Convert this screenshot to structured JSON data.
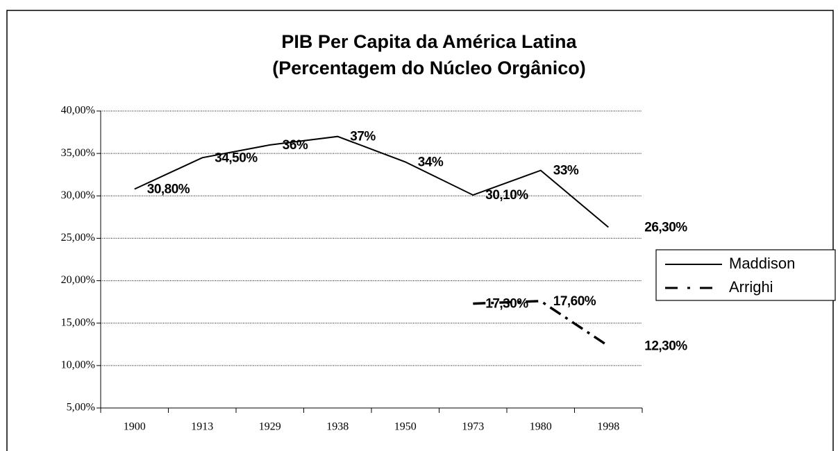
{
  "chart_data": {
    "type": "line",
    "title": [
      "PIB Per Capita da América Latina",
      "(Percentagem do Núcleo Orgânico)"
    ],
    "categories": [
      "1900",
      "1913",
      "1929",
      "1938",
      "1950",
      "1973",
      "1980",
      "1998"
    ],
    "series": [
      {
        "name": "Maddison",
        "color": "#000000",
        "dash": false,
        "values": [
          30.8,
          34.5,
          36,
          37,
          34,
          30.1,
          33,
          26.3
        ],
        "value_labels": [
          "30,80%",
          "34,50%",
          "36%",
          "37%",
          "34%",
          "30,10%",
          "33%",
          "26,30%"
        ]
      },
      {
        "name": "Arrighi",
        "color": "#000000",
        "dash": true,
        "values": [
          null,
          null,
          null,
          null,
          null,
          17.3,
          17.6,
          12.3
        ],
        "value_labels": [
          null,
          null,
          null,
          null,
          null,
          "17,30%",
          "17,60%",
          "12,30%"
        ]
      }
    ],
    "ylim": [
      5,
      40
    ],
    "yticks": [
      {
        "value": 5,
        "label": "5,00%"
      },
      {
        "value": 10,
        "label": "10,00%"
      },
      {
        "value": 15,
        "label": "15,00%"
      },
      {
        "value": 20,
        "label": "20,00%"
      },
      {
        "value": 25,
        "label": "25,00%"
      },
      {
        "value": 30,
        "label": "30,00%"
      },
      {
        "value": 35,
        "label": "35,00%"
      },
      {
        "value": 40,
        "label": "40,00%"
      }
    ],
    "grid": true,
    "legend": "right"
  }
}
